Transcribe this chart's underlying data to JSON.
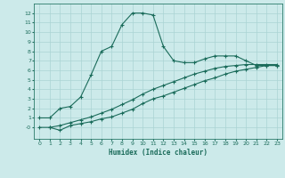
{
  "xlabel": "Humidex (Indice chaleur)",
  "bg_color": "#cceaea",
  "grid_color": "#aad4d4",
  "line_color": "#1a6b5a",
  "spine_color": "#2a7a6a",
  "xlim": [
    -0.5,
    23.5
  ],
  "ylim": [
    -1.2,
    13
  ],
  "yticks": [
    0,
    1,
    2,
    3,
    4,
    5,
    6,
    7,
    8,
    9,
    10,
    11,
    12
  ],
  "ytick_labels": [
    "-0",
    "1",
    "2",
    "3",
    "4",
    "5",
    "6",
    "7",
    "8",
    "9",
    "10",
    "11",
    "12"
  ],
  "xticks": [
    0,
    1,
    2,
    3,
    4,
    5,
    6,
    7,
    8,
    9,
    10,
    11,
    12,
    13,
    14,
    15,
    16,
    17,
    18,
    19,
    20,
    21,
    22,
    23
  ],
  "series1_x": [
    0,
    1,
    2,
    3,
    4,
    5,
    6,
    7,
    8,
    9,
    10,
    11,
    12,
    13,
    14,
    15,
    16,
    17,
    18,
    19,
    20,
    21,
    22,
    23
  ],
  "series1_y": [
    1,
    1,
    2,
    2.2,
    3.2,
    5.5,
    8,
    8.5,
    10.8,
    12,
    12,
    11.8,
    8.5,
    7,
    6.8,
    6.8,
    7.2,
    7.5,
    7.5,
    7.5,
    7.0,
    6.5,
    6.5,
    6.5
  ],
  "series2_x": [
    1,
    2,
    3,
    4,
    5,
    6,
    7,
    8,
    9,
    10,
    11,
    12,
    13,
    14,
    15,
    16,
    17,
    18,
    19,
    20,
    21,
    22,
    23
  ],
  "series2_y": [
    0,
    -0.3,
    0.2,
    0.4,
    0.6,
    0.9,
    1.1,
    1.5,
    1.9,
    2.5,
    3.0,
    3.3,
    3.7,
    4.1,
    4.5,
    4.9,
    5.2,
    5.6,
    5.9,
    6.1,
    6.3,
    6.5,
    6.5
  ],
  "series3_x": [
    0,
    1,
    2,
    3,
    4,
    5,
    6,
    7,
    8,
    9,
    10,
    11,
    12,
    13,
    14,
    15,
    16,
    17,
    18,
    19,
    20,
    21,
    22,
    23
  ],
  "series3_y": [
    0,
    0,
    0.2,
    0.5,
    0.8,
    1.1,
    1.5,
    1.9,
    2.4,
    2.9,
    3.5,
    4.0,
    4.4,
    4.8,
    5.2,
    5.6,
    5.9,
    6.2,
    6.4,
    6.5,
    6.6,
    6.6,
    6.6,
    6.6
  ]
}
